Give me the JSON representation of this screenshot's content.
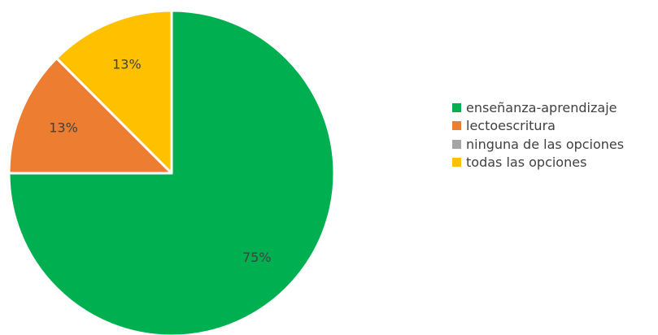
{
  "chart_data": {
    "type": "pie",
    "title": "",
    "categories": [
      "enseñanza-aprendizaje",
      "lectoescritura",
      "ninguna de las opciones",
      "todas las opciones"
    ],
    "values": [
      75,
      12.5,
      0,
      12.5
    ],
    "data_labels": [
      "75%",
      "13%",
      "",
      "13%"
    ],
    "colors": [
      "#00B050",
      "#ED7D31",
      "#A5A5A5",
      "#FFC000"
    ],
    "start_angle_deg": 0,
    "direction": "clockwise",
    "legend_position": "right"
  }
}
